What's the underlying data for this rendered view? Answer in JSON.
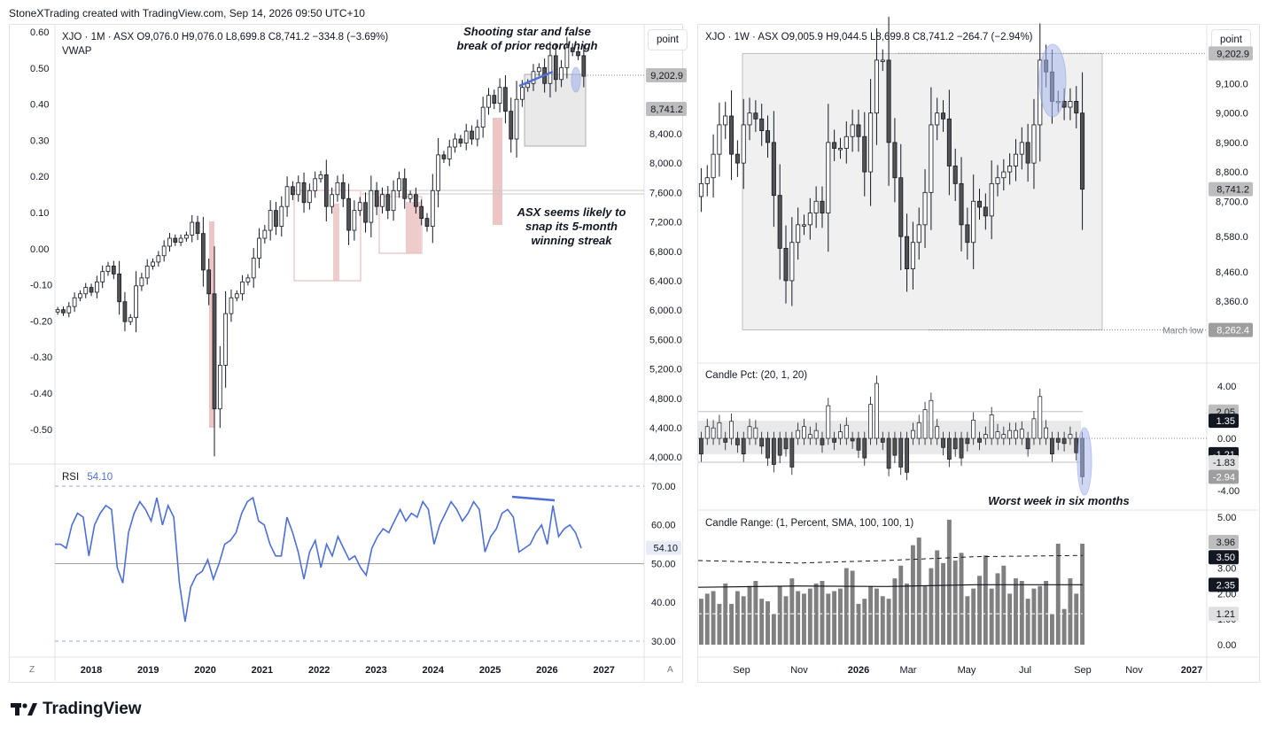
{
  "header": "StoneXTrading created with TradingView.com, Sep 14, 2026 09:50 UTC+10",
  "logo_text": "TradingView",
  "unit_button": "point",
  "corner_left": "Z",
  "corner_right": "A",
  "colors": {
    "up": "#ffffff",
    "down": "#525252",
    "wick": "#131722",
    "vwap_zone": "#d9d9d9",
    "rsi": "#4d6fd6",
    "annotation_blue": "#4d6fd6",
    "highlight_red": "#e8b7b7",
    "bar_gray": "#808080"
  },
  "left": {
    "ohlc": "XJO · 1M · ASX  O9,076.0  H9,076.0  L8,699.8  C8,741.2  −334.8 (−3.69%)",
    "indicator": "VWAP",
    "annotation_top": [
      "Shooting star and false",
      "break of prior record high"
    ],
    "annotation_mid": [
      "ASX seems likely to",
      "snap its 5-month",
      "winning streak"
    ],
    "left_axis_ticks": [
      "0.60",
      "0.50",
      "0.40",
      "0.30",
      "0.20",
      "0.10",
      "0.00",
      "-0.10",
      "-0.20",
      "-0.30",
      "-0.40",
      "-0.50"
    ],
    "right_axis_ticks": [
      "8,400.0",
      "8,000.0",
      "7,600.0",
      "7,200.0",
      "6,800.0",
      "6,400.0",
      "6,000.0",
      "5,600.0",
      "5,200.0",
      "4,800.0",
      "4,400.0",
      "4,000.0"
    ],
    "price_labels": [
      "9,202.9",
      "8,741.2"
    ],
    "x_ticks": [
      "2018",
      "2019",
      "2020",
      "2021",
      "2022",
      "2023",
      "2024",
      "2025",
      "2026",
      "2027"
    ],
    "rsi_label": "RSI",
    "rsi_value": "54.10",
    "rsi_ticks": [
      "70.00",
      "60.00",
      "50.00",
      "40.00",
      "30.00"
    ],
    "rsi_value_tag": "54.10"
  },
  "right": {
    "ohlc": "XJO · 1W · ASX  O9,005.9  H9,044.5  L8,699.8  C8,741.2  −264.7 (−2.94%)",
    "price_ticks": [
      "9,100.0",
      "9,000.0",
      "8,900.0",
      "8,800.0",
      "8,700.0",
      "8,580.0",
      "8,460.0",
      "8,360.0"
    ],
    "price_labels": [
      "9,202.9",
      "8,741.2",
      "8,262.4"
    ],
    "march_low_label": "March low",
    "candle_pct_label": "Candle Pct:  (20, 1, 20)",
    "candle_pct_ticks": [
      "4.00",
      "0.00",
      "-4.00"
    ],
    "candle_pct_tags": [
      "2.05",
      "1.35",
      "-1.21",
      "-1.83",
      "-2.94"
    ],
    "candle_range_label": "Candle Range:  (1, Percent, SMA, 100, 100, 1)",
    "candle_range_ticks": [
      "5.00",
      "3.00",
      "2.00",
      "1.00",
      "0.00"
    ],
    "candle_range_tags": [
      "3.96",
      "3.50",
      "2.35",
      "1.21"
    ],
    "worst_week_annotation": "Worst week in six months",
    "x_ticks": [
      "Sep",
      "Nov",
      "2026",
      "Mar",
      "May",
      "Jul",
      "Sep",
      "Nov",
      "2027"
    ]
  },
  "chart_data": [
    {
      "type": "candlestick",
      "title": "XJO · 1M · ASX",
      "interval": "monthly",
      "y_range": [
        3900,
        9300
      ],
      "last_close": 8741.2,
      "record_high": 9202.9,
      "closes_estimated": [
        5800,
        5760,
        5840,
        5950,
        6000,
        6080,
        6020,
        6150,
        6280,
        6350,
        6250,
        5900,
        5650,
        5700,
        6100,
        6200,
        6350,
        6400,
        6480,
        6600,
        6700,
        6650,
        6700,
        6740,
        6900,
        6760,
        6300,
        6000,
        4550,
        5100,
        5750,
        5950,
        6000,
        6150,
        6200,
        6450,
        6700,
        6800,
        7050,
        6850,
        7100,
        7350,
        7250,
        7400,
        7150,
        7300,
        7450,
        7500,
        7100,
        7250,
        7400,
        7200,
        6800,
        7050,
        7150,
        6900,
        7300,
        7100,
        7250,
        7050,
        7300,
        7450,
        7200,
        7250,
        7100,
        6950,
        6850,
        7300,
        7750,
        7700,
        7850,
        7950,
        7900,
        8050,
        7950,
        8100,
        8350,
        8500,
        8400,
        8600,
        8300,
        7950,
        8450,
        8600,
        8650,
        8800,
        8850,
        8650,
        9000,
        8700,
        8850,
        9100,
        9050,
        9000,
        8741
      ]
    },
    {
      "type": "line",
      "title": "RSI",
      "y_range": [
        28,
        73
      ],
      "current": 54.1,
      "values_estimated": [
        55,
        55,
        54,
        60,
        63,
        62,
        52,
        60,
        63,
        65,
        64,
        49,
        45,
        58,
        63,
        66,
        64,
        61,
        67,
        60,
        65,
        62,
        45,
        35,
        44,
        47,
        48,
        51,
        46,
        50,
        55,
        56,
        58,
        63,
        66,
        67,
        61,
        60,
        55,
        52,
        52,
        62,
        58,
        53,
        46,
        53,
        56,
        49,
        55,
        52,
        57,
        54,
        51,
        52,
        49,
        47,
        54,
        57,
        59,
        58,
        61,
        64,
        61,
        63,
        62,
        66,
        64,
        55,
        60,
        63,
        66,
        64,
        61,
        63,
        66,
        64,
        53,
        57,
        59,
        63,
        64,
        62,
        53,
        54,
        55,
        58,
        60,
        55,
        65,
        57,
        59,
        60,
        58,
        54
      ]
    },
    {
      "type": "candlestick",
      "title": "XJO · 1W · ASX",
      "interval": "weekly",
      "y_range": [
        8240,
        9240
      ],
      "last_close": 8741.2,
      "march_low": 8262.4,
      "closes_estimated": [
        8760,
        8780,
        8860,
        8960,
        8990,
        8860,
        8830,
        8960,
        9000,
        8980,
        8940,
        8900,
        8720,
        8540,
        8430,
        8560,
        8620,
        8620,
        8660,
        8700,
        8660,
        8900,
        8880,
        8880,
        8920,
        8960,
        8920,
        8800,
        9000,
        9180,
        9180,
        8900,
        8780,
        8580,
        8470,
        8560,
        8620,
        8730,
        8960,
        9000,
        8980,
        8820,
        8760,
        8620,
        8560,
        8700,
        8680,
        8650,
        8760,
        8780,
        8800,
        8820,
        8860,
        8900,
        8830,
        8960,
        9180,
        9140,
        9040,
        9040,
        9020,
        9040,
        9000,
        8741
      ]
    },
    {
      "type": "bar",
      "title": "Candle Pct",
      "y_range": [
        -4.6,
        4.6
      ],
      "bands": [
        2.05,
        1.35,
        -1.21,
        -1.83
      ],
      "last": -2.94,
      "values_estimated": [
        -1.2,
        0.9,
        0.8,
        1.2,
        -0.3,
        1.3,
        -0.5,
        -1.2,
        0.9,
        0.8,
        -0.6,
        -1.5,
        -2.0,
        -1.3,
        -0.8,
        -2.2,
        0.6,
        0.9,
        0.3,
        0.6,
        -0.5,
        2.5,
        -0.3,
        0.5,
        1.0,
        -0.2,
        -0.9,
        -1.5,
        2.6,
        4.2,
        -0.3,
        -2.3,
        -1.3,
        -2.2,
        -2.6,
        0.6,
        1.2,
        2.2,
        2.9,
        0.9,
        -0.7,
        -1.6,
        -0.8,
        -1.5,
        -0.4,
        1.4,
        -0.3,
        0.3,
        1.8,
        0.5,
        0.3,
        0.6,
        0.6,
        0.7,
        -0.8,
        1.5,
        3.2,
        0.8,
        -1.2,
        -0.3,
        -0.4,
        0.3,
        -1.1,
        -2.94
      ]
    },
    {
      "type": "bar",
      "title": "Candle Range",
      "y_range": [
        0,
        5.2
      ],
      "sma_long": 2.35,
      "sma_upper": 3.5,
      "last": 3.96,
      "values_estimated": [
        1.8,
        2.0,
        2.1,
        1.6,
        2.4,
        1.6,
        2.1,
        1.9,
        2.3,
        2.5,
        1.8,
        1.7,
        1.2,
        2.3,
        1.9,
        2.6,
        2.1,
        2.0,
        2.2,
        2.4,
        2.5,
        2.0,
        2.1,
        2.2,
        3.0,
        2.9,
        1.6,
        1.8,
        2.3,
        2.2,
        1.9,
        1.8,
        2.6,
        3.1,
        2.4,
        3.9,
        4.2,
        2.3,
        3.0,
        3.7,
        3.2,
        4.9,
        3.3,
        3.6,
        1.9,
        2.2,
        2.7,
        3.5,
        2.2,
        2.8,
        3.1,
        2.0,
        2.6,
        2.5,
        1.8,
        2.2,
        2.3,
        2.5,
        1.2,
        3.96,
        1.4,
        2.6,
        2.0,
        3.96
      ]
    }
  ]
}
